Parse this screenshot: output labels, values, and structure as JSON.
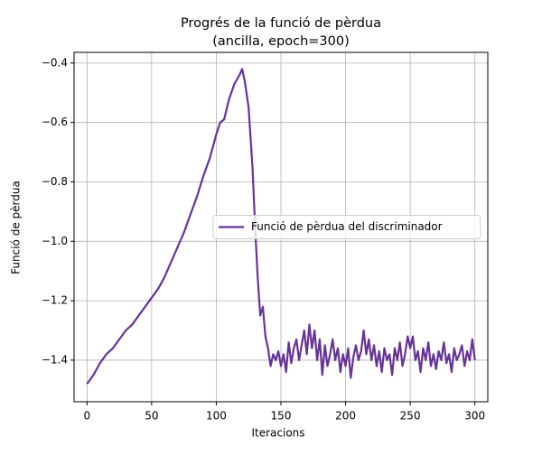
{
  "chart_data": {
    "type": "line",
    "title": [
      "Progrés de la funció de pèrdua",
      "(ancilla, epoch=300)"
    ],
    "x_label": "Iteracions",
    "y_label": "Funció de pèrdua",
    "x": [
      0,
      5,
      10,
      15,
      20,
      25,
      30,
      35,
      40,
      45,
      50,
      55,
      60,
      65,
      70,
      75,
      80,
      85,
      90,
      95,
      100,
      103,
      106,
      110,
      114,
      118,
      120,
      122,
      125,
      128,
      130,
      132,
      134,
      136,
      138,
      140,
      142,
      144,
      146,
      148,
      150,
      152,
      154,
      156,
      158,
      160,
      162,
      164,
      166,
      168,
      170,
      172,
      174,
      176,
      178,
      180,
      182,
      184,
      186,
      188,
      190,
      192,
      194,
      196,
      198,
      200,
      202,
      204,
      206,
      208,
      210,
      212,
      214,
      216,
      218,
      220,
      222,
      224,
      226,
      228,
      230,
      232,
      234,
      236,
      238,
      240,
      242,
      244,
      246,
      248,
      250,
      252,
      254,
      256,
      258,
      260,
      262,
      264,
      266,
      268,
      270,
      272,
      274,
      276,
      278,
      280,
      282,
      284,
      286,
      288,
      290,
      292,
      294,
      296,
      298,
      300
    ],
    "series": [
      {
        "name": "Funció de pèrdua del discriminador",
        "color": "#663399",
        "values": [
          -1.48,
          -1.45,
          -1.41,
          -1.38,
          -1.36,
          -1.33,
          -1.3,
          -1.28,
          -1.25,
          -1.22,
          -1.19,
          -1.16,
          -1.12,
          -1.07,
          -1.02,
          -0.97,
          -0.91,
          -0.85,
          -0.78,
          -0.72,
          -0.64,
          -0.6,
          -0.59,
          -0.52,
          -0.47,
          -0.44,
          -0.42,
          -0.46,
          -0.55,
          -0.75,
          -0.95,
          -1.12,
          -1.25,
          -1.22,
          -1.32,
          -1.36,
          -1.42,
          -1.38,
          -1.4,
          -1.37,
          -1.42,
          -1.38,
          -1.44,
          -1.34,
          -1.41,
          -1.36,
          -1.33,
          -1.4,
          -1.35,
          -1.3,
          -1.38,
          -1.28,
          -1.36,
          -1.3,
          -1.4,
          -1.33,
          -1.45,
          -1.35,
          -1.42,
          -1.38,
          -1.33,
          -1.4,
          -1.36,
          -1.44,
          -1.38,
          -1.42,
          -1.36,
          -1.46,
          -1.39,
          -1.35,
          -1.4,
          -1.37,
          -1.3,
          -1.38,
          -1.33,
          -1.4,
          -1.35,
          -1.42,
          -1.37,
          -1.44,
          -1.36,
          -1.4,
          -1.38,
          -1.45,
          -1.36,
          -1.4,
          -1.34,
          -1.42,
          -1.38,
          -1.32,
          -1.36,
          -1.32,
          -1.4,
          -1.37,
          -1.44,
          -1.36,
          -1.4,
          -1.34,
          -1.42,
          -1.38,
          -1.43,
          -1.37,
          -1.4,
          -1.34,
          -1.41,
          -1.38,
          -1.44,
          -1.36,
          -1.4,
          -1.38,
          -1.35,
          -1.42,
          -1.37,
          -1.4,
          -1.33,
          -1.4
        ]
      }
    ],
    "xlim": [
      -10,
      310
    ],
    "xticks": [
      0,
      50,
      100,
      150,
      200,
      250,
      300
    ],
    "ylim": [
      -1.54,
      -0.364
    ],
    "yticks": [
      {
        "value": -1.4,
        "label": "−1.4"
      },
      {
        "value": -1.2,
        "label": "−1.2"
      },
      {
        "value": -1.0,
        "label": "−1.0"
      },
      {
        "value": -0.8,
        "label": "−0.8"
      },
      {
        "value": -0.6,
        "label": "−0.6"
      },
      {
        "value": -0.4,
        "label": "−0.4"
      }
    ],
    "grid": true,
    "legend": "center right"
  }
}
